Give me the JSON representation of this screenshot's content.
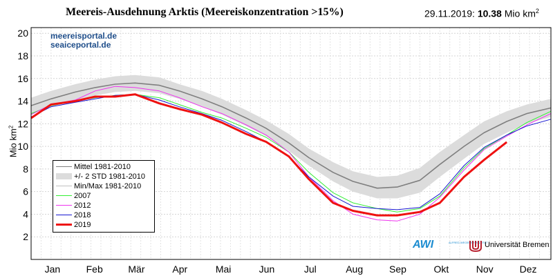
{
  "header": {
    "title": "Meereis-Ausdehnung Arktis (Meereiskonzentration >15%)",
    "date_label": "29.11.2019:",
    "value_label": "10.38",
    "unit_label": "Mio km",
    "unit_sup": "2"
  },
  "watermark": {
    "line1": "meereisportal.de",
    "line2": "seaiceportal.de"
  },
  "logos": {
    "awi": "AWI",
    "awi_sub": "ALFRED WEGENER INSTITUT",
    "ub": "Universität Bremen"
  },
  "colors": {
    "mean": "#7f7f7f",
    "std_band": "#dcdcdc",
    "minmax": "#c0c0c0",
    "y2007": "#33ee33",
    "y2012": "#ee33ee",
    "y2018": "#1515d0",
    "y2019": "#ee1111"
  },
  "chart_data": {
    "type": "line",
    "title": "Meereis-Ausdehnung Arktis (Meereiskonzentration >15%)",
    "ylabel": "Mio km2",
    "ylabel_text": "Mio km",
    "ylabel_sup": "2",
    "ylim": [
      0,
      20.5
    ],
    "xlim": [
      1,
      366
    ],
    "yticks": [
      2,
      4,
      6,
      8,
      10,
      12,
      14,
      16,
      18,
      20
    ],
    "months": [
      "Jan",
      "Feb",
      "Mär",
      "Apr",
      "Mai",
      "Jun",
      "Jul",
      "Aug",
      "Sep",
      "Okt",
      "Nov",
      "Dez"
    ],
    "month_mid_doy": [
      16,
      45.5,
      75,
      105.5,
      136,
      166.5,
      197,
      228,
      258.5,
      289,
      319.5,
      350
    ],
    "grid": true,
    "legend_position": "bottom-left",
    "x": [
      1,
      15,
      32,
      46,
      60,
      74,
      91,
      105,
      121,
      135,
      152,
      166,
      182,
      196,
      213,
      227,
      244,
      258,
      274,
      288,
      305,
      319,
      335,
      349,
      366
    ],
    "std_band": {
      "name": "+/- 2 STD 1981-2010",
      "lower": [
        12.9,
        13.5,
        14.1,
        14.5,
        14.8,
        14.9,
        14.7,
        14.2,
        13.5,
        12.8,
        11.8,
        10.9,
        9.6,
        8.3,
        6.9,
        6.0,
        5.4,
        5.4,
        5.9,
        7.3,
        8.9,
        10.2,
        11.2,
        12.0,
        12.6
      ],
      "upper": [
        14.3,
        14.9,
        15.5,
        15.9,
        16.2,
        16.3,
        16.1,
        15.5,
        14.9,
        14.2,
        13.2,
        12.3,
        11.1,
        9.8,
        8.6,
        7.8,
        7.3,
        7.4,
        8.1,
        9.5,
        11.0,
        12.2,
        13.1,
        13.7,
        14.2
      ]
    },
    "series": [
      {
        "name": "Mittel 1981-2010",
        "key": "mean",
        "values": [
          13.6,
          14.2,
          14.8,
          15.2,
          15.5,
          15.6,
          15.4,
          14.9,
          14.2,
          13.5,
          12.5,
          11.6,
          10.3,
          9.0,
          7.7,
          6.9,
          6.3,
          6.4,
          7.0,
          8.4,
          10.0,
          11.2,
          12.2,
          12.9,
          13.4
        ]
      },
      {
        "name": "2007",
        "key": "y2007",
        "values": [
          12.9,
          13.6,
          14.0,
          14.3,
          14.5,
          14.6,
          14.3,
          13.7,
          13.0,
          12.5,
          11.6,
          10.8,
          9.5,
          7.7,
          5.9,
          5.0,
          4.5,
          4.2,
          4.5,
          5.6,
          8.1,
          9.8,
          11.0,
          12.1,
          13.1
        ]
      },
      {
        "name": "2012",
        "key": "y2012",
        "values": [
          12.8,
          13.7,
          14.1,
          14.9,
          15.3,
          15.2,
          14.9,
          14.3,
          13.5,
          12.9,
          11.9,
          11.0,
          9.5,
          7.3,
          5.2,
          4.0,
          3.5,
          3.4,
          4.0,
          5.5,
          7.9,
          9.7,
          10.9,
          11.9,
          12.9
        ]
      },
      {
        "name": "2018",
        "key": "y2018",
        "values": [
          12.6,
          13.5,
          13.9,
          14.2,
          14.5,
          14.6,
          14.1,
          13.5,
          12.9,
          12.3,
          11.3,
          10.4,
          9.1,
          7.3,
          5.6,
          4.7,
          4.5,
          4.4,
          4.6,
          5.8,
          8.3,
          9.9,
          11.0,
          11.8,
          12.4
        ]
      },
      {
        "name": "2019",
        "key": "y2019",
        "values": [
          12.5,
          13.7,
          14.0,
          14.4,
          14.4,
          14.6,
          13.8,
          13.3,
          12.8,
          12.1,
          11.1,
          10.4,
          9.1,
          7.1,
          5.0,
          4.3,
          3.9,
          3.9,
          4.2,
          5.0,
          7.3,
          8.8,
          10.38,
          null,
          null
        ]
      }
    ],
    "minmax": {
      "name": "Min/Max 1981-2010"
    },
    "legend": [
      "Mittel 1981-2010",
      "+/- 2 STD 1981-2010",
      "Min/Max 1981-2010",
      "2007",
      "2012",
      "2018",
      "2019"
    ]
  }
}
